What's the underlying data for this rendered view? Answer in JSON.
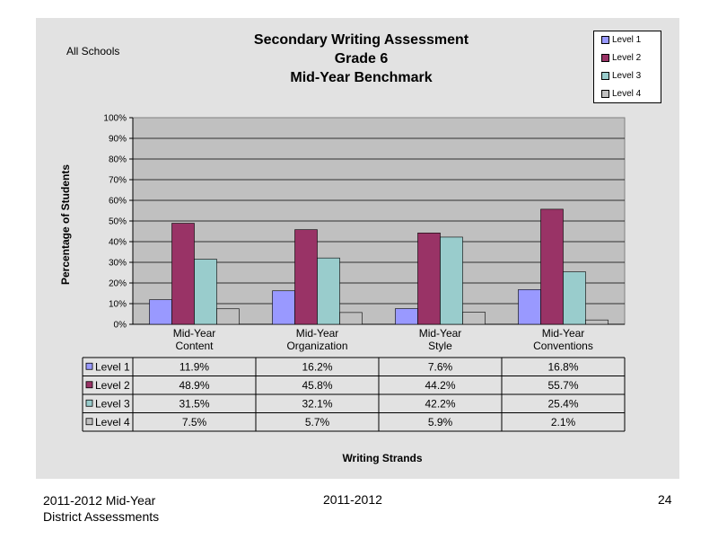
{
  "chart_data": {
    "type": "bar",
    "title": [
      "Secondary Writing Assessment",
      "Grade 6",
      "Mid-Year Benchmark"
    ],
    "subtitle": "All Schools",
    "xlabel": "Writing Strands",
    "ylabel": "Percentage of Students",
    "ylim": [
      0,
      100
    ],
    "yticks": [
      "0%",
      "10%",
      "20%",
      "30%",
      "40%",
      "50%",
      "60%",
      "70%",
      "80%",
      "90%",
      "100%"
    ],
    "categories": [
      [
        "Mid-Year",
        "Content"
      ],
      [
        "Mid-Year",
        "Organization"
      ],
      [
        "Mid-Year",
        "Style"
      ],
      [
        "Mid-Year",
        "Conventions"
      ]
    ],
    "series": [
      {
        "name": "Level 1",
        "color": "#9999ff",
        "values": [
          11.9,
          16.2,
          7.6,
          16.8
        ],
        "labels": [
          "11.9%",
          "16.2%",
          "7.6%",
          "16.8%"
        ]
      },
      {
        "name": "Level 2",
        "color": "#993366",
        "values": [
          48.9,
          45.8,
          44.2,
          55.7
        ],
        "labels": [
          "48.9%",
          "45.8%",
          "44.2%",
          "55.7%"
        ]
      },
      {
        "name": "Level 3",
        "color": "#99cccc",
        "values": [
          31.5,
          32.1,
          42.2,
          25.4
        ],
        "labels": [
          "31.5%",
          "32.1%",
          "42.2%",
          "25.4%"
        ]
      },
      {
        "name": "Level 4",
        "color": "#c0c0c0",
        "values": [
          7.5,
          5.7,
          5.9,
          2.1
        ],
        "labels": [
          "7.5%",
          "5.7%",
          "5.9%",
          "2.1%"
        ]
      }
    ],
    "legend_position": "top-right",
    "grid": true,
    "plot_background": "#c0c0c0",
    "data_table": true
  },
  "footer": {
    "left_line1": "2011-2012  Mid-Year",
    "left_line2": "District Assessments",
    "center": "2011-2012",
    "page_number": "24"
  }
}
